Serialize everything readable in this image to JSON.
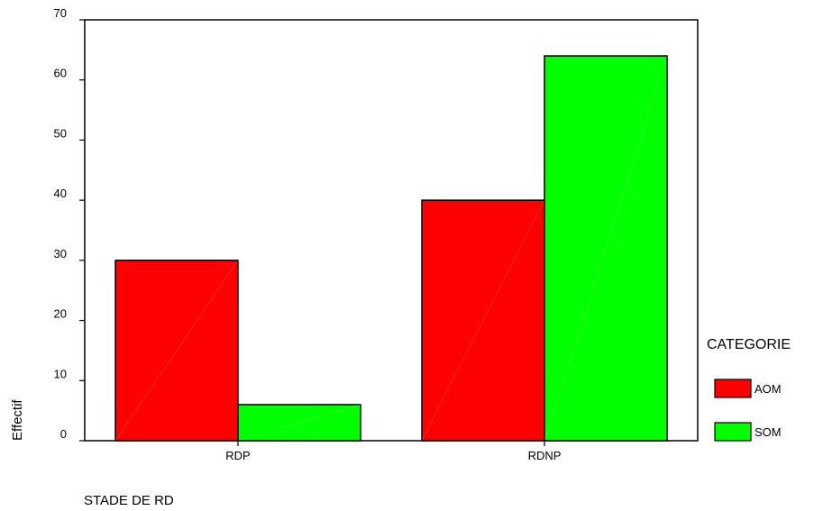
{
  "chart_data": {
    "type": "bar",
    "categories": [
      "RDP",
      "RDNP"
    ],
    "series": [
      {
        "name": "AOM",
        "values": [
          30,
          40
        ],
        "color": "#ff0000"
      },
      {
        "name": "SOM",
        "values": [
          6,
          64
        ],
        "color": "#00ff00"
      }
    ],
    "xlabel": "STADE DE RD",
    "ylabel": "Effectif",
    "ylim": [
      0,
      70
    ],
    "yticks": [
      0,
      10,
      20,
      30,
      40,
      50,
      60,
      70
    ],
    "grid": false,
    "legend": {
      "title": "CATEGORIE",
      "placement": "right"
    }
  }
}
